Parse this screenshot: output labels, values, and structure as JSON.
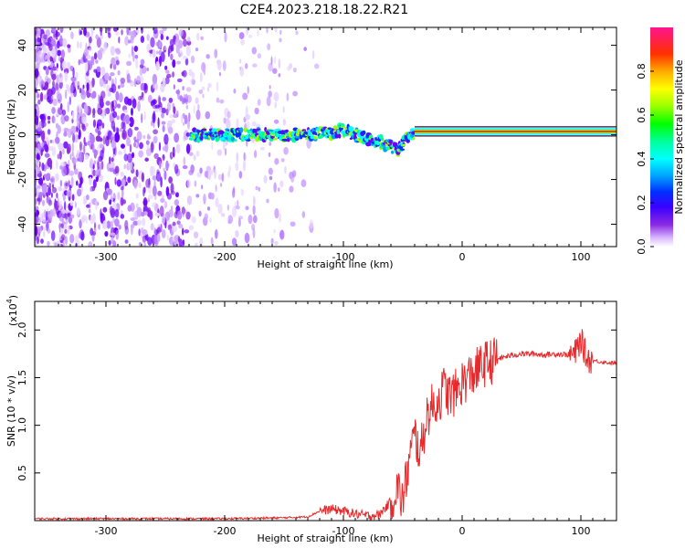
{
  "title": "C2E4.2023.218.18.22.R21",
  "chart_data": [
    {
      "type": "heatmap",
      "xlabel": "Height of straight line (km)",
      "ylabel": "Frequency (Hz)",
      "xlim": [
        -360,
        130
      ],
      "ylim": [
        -50,
        48
      ],
      "xticks": [
        -300,
        -200,
        -100,
        0,
        100
      ],
      "yticks": [
        -40,
        -20,
        0,
        20,
        40
      ],
      "colorbar": {
        "label": "Normalized spectral amplitude",
        "range": [
          0,
          1
        ],
        "ticks": [
          0.0,
          0.2,
          0.4,
          0.6,
          0.8
        ],
        "colors": [
          "#ffffff",
          "#cfa8ff",
          "#8a2be2",
          "#6a00ff",
          "#0000ff",
          "#00b4ff",
          "#00ffff",
          "#00ff7f",
          "#00ff00",
          "#aaff00",
          "#ffff00",
          "#ffa500",
          "#ff3000",
          "#ff0080"
        ]
      },
      "ridge": {
        "x": [
          -230,
          -210,
          -190,
          -170,
          -150,
          -130,
          -110,
          -100,
          -90,
          -80,
          -70,
          -60,
          -55,
          -50,
          -45,
          -40,
          -30,
          -20,
          -10,
          0,
          20,
          50,
          80,
          100,
          130
        ],
        "y": [
          0,
          0,
          0,
          0,
          0,
          0,
          1,
          2,
          0,
          -2,
          -3,
          -5,
          -7,
          -4,
          -1,
          0,
          1,
          1.5,
          1.5,
          2,
          1.5,
          1.5,
          1.5,
          1.5,
          1.5
        ]
      }
    },
    {
      "type": "line",
      "xlabel": "Height of straight line (km)",
      "ylabel": "SNR (10 * v/v)",
      "yscale_label": "(x10",
      "yscale_exp": "4",
      "yscale_close": ")",
      "xlim": [
        -360,
        130
      ],
      "ylim": [
        0,
        2.3
      ],
      "xticks": [
        -300,
        -200,
        -100,
        0,
        100
      ],
      "yticks": [
        0.5,
        1.0,
        1.5,
        2.0
      ],
      "color": "#e8292b",
      "series": [
        {
          "x": [
            -360,
            -300,
            -250,
            -200,
            -150,
            -130,
            -120,
            -110,
            -100,
            -90,
            -80,
            -70,
            -60,
            -55,
            -50,
            -45,
            -40,
            -35,
            -30,
            -25,
            -20,
            -15,
            -10,
            -5,
            0,
            5,
            10,
            15,
            20,
            30,
            40,
            50,
            60,
            70,
            80,
            90,
            95,
            100,
            105,
            110,
            120,
            130
          ],
          "y": [
            0.02,
            0.02,
            0.02,
            0.02,
            0.03,
            0.04,
            0.1,
            0.12,
            0.1,
            0.07,
            0.05,
            0.06,
            0.2,
            0.35,
            0.2,
            0.6,
            0.9,
            0.7,
            1.1,
            1.2,
            1.25,
            1.4,
            1.3,
            1.35,
            1.45,
            1.5,
            1.55,
            1.6,
            1.65,
            1.7,
            1.73,
            1.75,
            1.75,
            1.74,
            1.75,
            1.74,
            1.75,
            1.9,
            1.7,
            1.68,
            1.66,
            1.65
          ]
        }
      ]
    }
  ]
}
